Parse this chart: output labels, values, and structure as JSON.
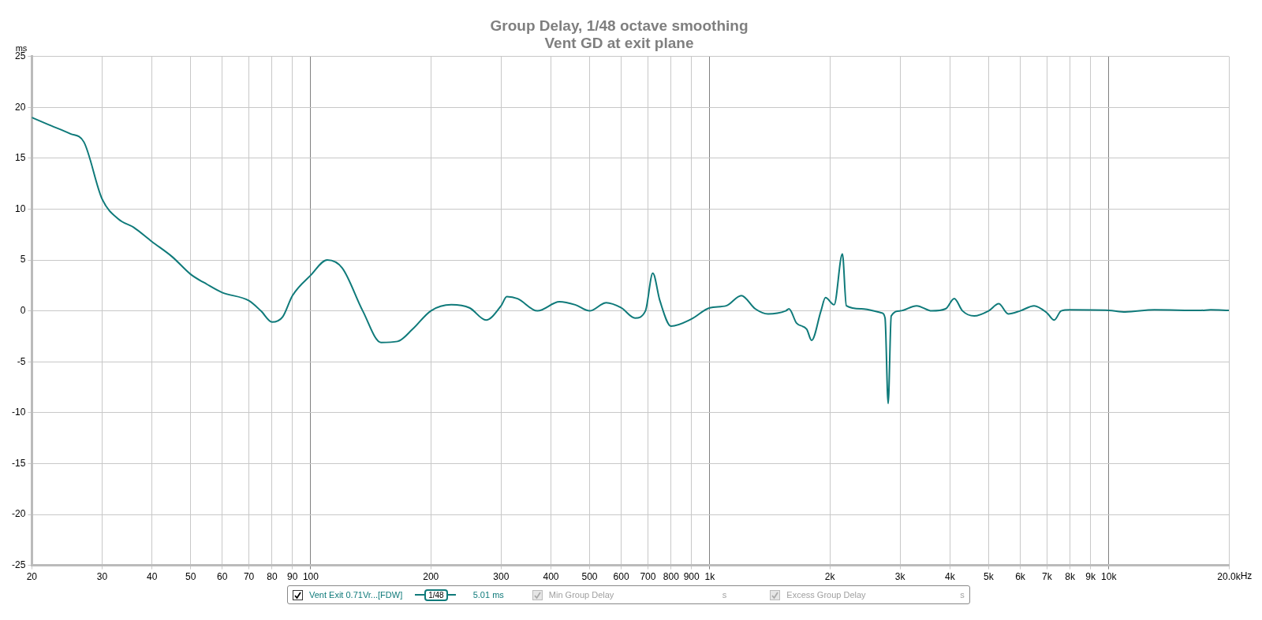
{
  "chart_data": {
    "type": "line",
    "title": "Group Delay, 1/48 octave smoothing",
    "subtitle": "Vent GD at exit plane",
    "ylabel": "ms",
    "x": [
      20,
      22,
      25,
      27,
      30,
      33,
      36,
      40,
      45,
      50,
      55,
      60,
      70,
      75,
      80,
      85,
      90,
      100,
      110,
      120,
      135,
      150,
      165,
      180,
      200,
      225,
      250,
      275,
      300,
      310,
      330,
      370,
      420,
      460,
      500,
      550,
      600,
      650,
      690,
      720,
      750,
      800,
      900,
      1000,
      1100,
      1200,
      1300,
      1400,
      1550,
      1580,
      1650,
      1750,
      1800,
      1900,
      1950,
      2050,
      2150,
      2200,
      2400,
      2700,
      2750,
      2800,
      2850,
      3000,
      3300,
      3600,
      3900,
      4100,
      4300,
      4600,
      5000,
      5300,
      5600,
      6000,
      6500,
      7000,
      7300,
      7600,
      8000,
      10000,
      11000,
      13000,
      17000,
      18000,
      20000
    ],
    "series": [
      {
        "name": "Vent Exit 0.71Vr...[FDW]",
        "color": "#0f7a7a",
        "values": [
          19.0,
          18.3,
          17.4,
          16.6,
          11.0,
          9.0,
          8.2,
          6.8,
          5.3,
          3.6,
          2.6,
          1.8,
          1.0,
          0,
          -1.1,
          -0.6,
          1.5,
          3.5,
          5.0,
          4.2,
          0,
          -3.1,
          -3.0,
          -1.8,
          0,
          0.6,
          0.3,
          -0.9,
          0.5,
          1.4,
          1.2,
          0,
          0.9,
          0.6,
          0,
          0.8,
          0.3,
          -0.7,
          0,
          3.7,
          1.0,
          -1.5,
          -0.8,
          0.3,
          0.5,
          1.5,
          0.2,
          -0.3,
          0,
          0.2,
          -1.2,
          -1.8,
          -2.9,
          0,
          1.3,
          0.6,
          5.6,
          0.5,
          0.2,
          -0.2,
          -0.7,
          -9.1,
          -0.5,
          0,
          0.5,
          0,
          0.2,
          1.2,
          0,
          -0.5,
          0,
          0.7,
          -0.3,
          0,
          0.5,
          -0.2,
          -0.9,
          0,
          0.1,
          0.05,
          -0.1,
          0.1,
          0.05,
          0.1,
          0.05
        ]
      }
    ],
    "log": "x",
    "xlim": [
      20,
      20000
    ],
    "ylim": [
      -25,
      25
    ],
    "xticks": [
      20,
      30,
      40,
      50,
      60,
      70,
      80,
      90,
      100,
      200,
      300,
      400,
      500,
      600,
      700,
      800,
      900,
      {
        "value": 1000,
        "label": "1k"
      },
      {
        "value": 2000,
        "label": "2k"
      },
      {
        "value": 3000,
        "label": "3k"
      },
      {
        "value": 4000,
        "label": "4k"
      },
      {
        "value": 5000,
        "label": "5k"
      },
      {
        "value": 6000,
        "label": "6k"
      },
      {
        "value": 7000,
        "label": "7k"
      },
      {
        "value": 8000,
        "label": "8k"
      },
      {
        "value": 9000,
        "label": "9k"
      },
      {
        "value": 10000,
        "label": "10k"
      },
      {
        "value": 20000,
        "label": "20.0k"
      }
    ],
    "xlabel": "Hz",
    "yticks": [
      -25,
      -20,
      -15,
      -10,
      -5,
      0,
      5,
      10,
      15,
      20,
      25
    ],
    "grid": true,
    "legend": "bottom",
    "marker": "none",
    "line_style": "solid",
    "annotations": [
      "1/48",
      "5.01 ms",
      "Min Group Delay",
      "s",
      "Excess Group Delay",
      "s"
    ]
  }
}
